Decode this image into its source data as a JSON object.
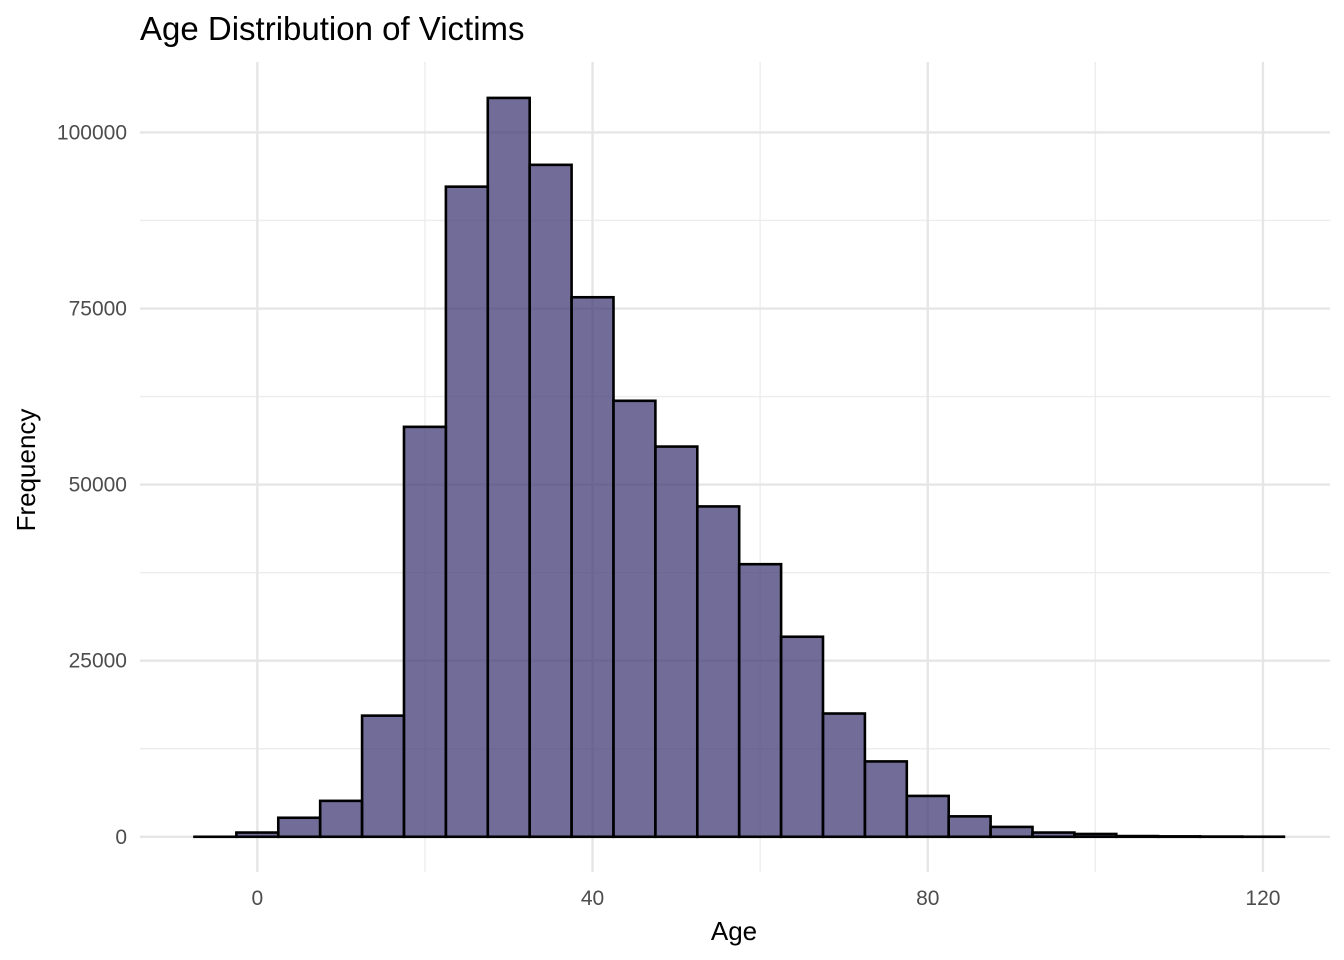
{
  "chart_data": {
    "type": "bar",
    "title": "Age Distribution of Victims",
    "xlabel": "Age",
    "ylabel": "Frequency",
    "bar_color": "#453F78",
    "bar_opacity": 0.76,
    "edge_color": "#000000",
    "grid": true,
    "xlim": [
      -14,
      128
    ],
    "ylim": [
      -5000,
      110000
    ],
    "x_ticks": [
      0,
      40,
      80,
      120
    ],
    "x_tick_labels": [
      "0",
      "40",
      "80",
      "120"
    ],
    "y_ticks": [
      0,
      25000,
      50000,
      75000,
      100000
    ],
    "y_tick_labels": [
      "0",
      "25000",
      "50000",
      "75000",
      "100000"
    ],
    "bin_width": 5,
    "bins": [
      {
        "start": -7.5,
        "end": -2.5,
        "value": 0
      },
      {
        "start": -2.5,
        "end": 2.5,
        "value": 600
      },
      {
        "start": 2.5,
        "end": 7.5,
        "value": 2700
      },
      {
        "start": 7.5,
        "end": 12.5,
        "value": 5100
      },
      {
        "start": 12.5,
        "end": 17.5,
        "value": 17200
      },
      {
        "start": 17.5,
        "end": 22.5,
        "value": 58200
      },
      {
        "start": 22.5,
        "end": 27.5,
        "value": 92300
      },
      {
        "start": 27.5,
        "end": 32.5,
        "value": 104900
      },
      {
        "start": 32.5,
        "end": 37.5,
        "value": 95400
      },
      {
        "start": 37.5,
        "end": 42.5,
        "value": 76600
      },
      {
        "start": 42.5,
        "end": 47.5,
        "value": 61900
      },
      {
        "start": 47.5,
        "end": 52.5,
        "value": 55400
      },
      {
        "start": 52.5,
        "end": 57.5,
        "value": 46900
      },
      {
        "start": 57.5,
        "end": 62.5,
        "value": 38700
      },
      {
        "start": 62.5,
        "end": 67.5,
        "value": 28400
      },
      {
        "start": 67.5,
        "end": 72.5,
        "value": 17500
      },
      {
        "start": 72.5,
        "end": 77.5,
        "value": 10700
      },
      {
        "start": 77.5,
        "end": 82.5,
        "value": 5800
      },
      {
        "start": 82.5,
        "end": 87.5,
        "value": 2900
      },
      {
        "start": 87.5,
        "end": 92.5,
        "value": 1400
      },
      {
        "start": 92.5,
        "end": 97.5,
        "value": 600
      },
      {
        "start": 97.5,
        "end": 102.5,
        "value": 400
      },
      {
        "start": 102.5,
        "end": 107.5,
        "value": 100
      },
      {
        "start": 107.5,
        "end": 112.5,
        "value": 60
      },
      {
        "start": 112.5,
        "end": 117.5,
        "value": 30
      },
      {
        "start": 117.5,
        "end": 122.5,
        "value": 10
      }
    ]
  }
}
